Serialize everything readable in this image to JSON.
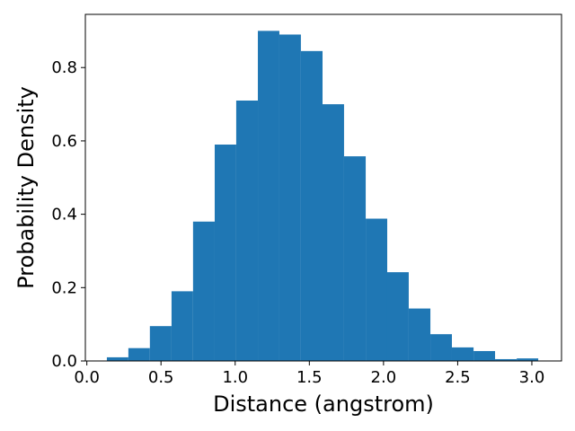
{
  "chart_data": {
    "type": "bar",
    "xlabel": "Distance (angstrom)",
    "ylabel": "Probability Density",
    "xlim": [
      -0.01,
      3.2
    ],
    "ylim": [
      0,
      0.945
    ],
    "grid": false,
    "bar_color": "#1f77b4",
    "xticks": [
      0.0,
      0.5,
      1.0,
      1.5,
      2.0,
      2.5,
      3.0
    ],
    "xtick_labels": [
      "0.0",
      "0.5",
      "1.0",
      "1.5",
      "2.0",
      "2.5",
      "3.0"
    ],
    "yticks": [
      0.0,
      0.2,
      0.4,
      0.6,
      0.8
    ],
    "ytick_labels": [
      "0.0",
      "0.2",
      "0.4",
      "0.6",
      "0.8"
    ],
    "bins": [
      {
        "x0": 0.135,
        "x1": 0.28,
        "density": 0.01
      },
      {
        "x0": 0.28,
        "x1": 0.425,
        "density": 0.035
      },
      {
        "x0": 0.425,
        "x1": 0.571,
        "density": 0.095
      },
      {
        "x0": 0.571,
        "x1": 0.716,
        "density": 0.19
      },
      {
        "x0": 0.716,
        "x1": 0.862,
        "density": 0.38
      },
      {
        "x0": 0.862,
        "x1": 1.007,
        "density": 0.59
      },
      {
        "x0": 1.007,
        "x1": 1.153,
        "density": 0.71
      },
      {
        "x0": 1.153,
        "x1": 1.298,
        "density": 0.9
      },
      {
        "x0": 1.298,
        "x1": 1.443,
        "density": 0.89
      },
      {
        "x0": 1.443,
        "x1": 1.589,
        "density": 0.845
      },
      {
        "x0": 1.589,
        "x1": 1.734,
        "density": 0.7
      },
      {
        "x0": 1.734,
        "x1": 1.88,
        "density": 0.558
      },
      {
        "x0": 1.88,
        "x1": 2.025,
        "density": 0.388
      },
      {
        "x0": 2.025,
        "x1": 2.17,
        "density": 0.242
      },
      {
        "x0": 2.17,
        "x1": 2.316,
        "density": 0.143
      },
      {
        "x0": 2.316,
        "x1": 2.461,
        "density": 0.073
      },
      {
        "x0": 2.461,
        "x1": 2.607,
        "density": 0.037
      },
      {
        "x0": 2.607,
        "x1": 2.752,
        "density": 0.027
      },
      {
        "x0": 2.752,
        "x1": 2.898,
        "density": 0.005
      },
      {
        "x0": 2.898,
        "x1": 3.043,
        "density": 0.007
      }
    ]
  }
}
